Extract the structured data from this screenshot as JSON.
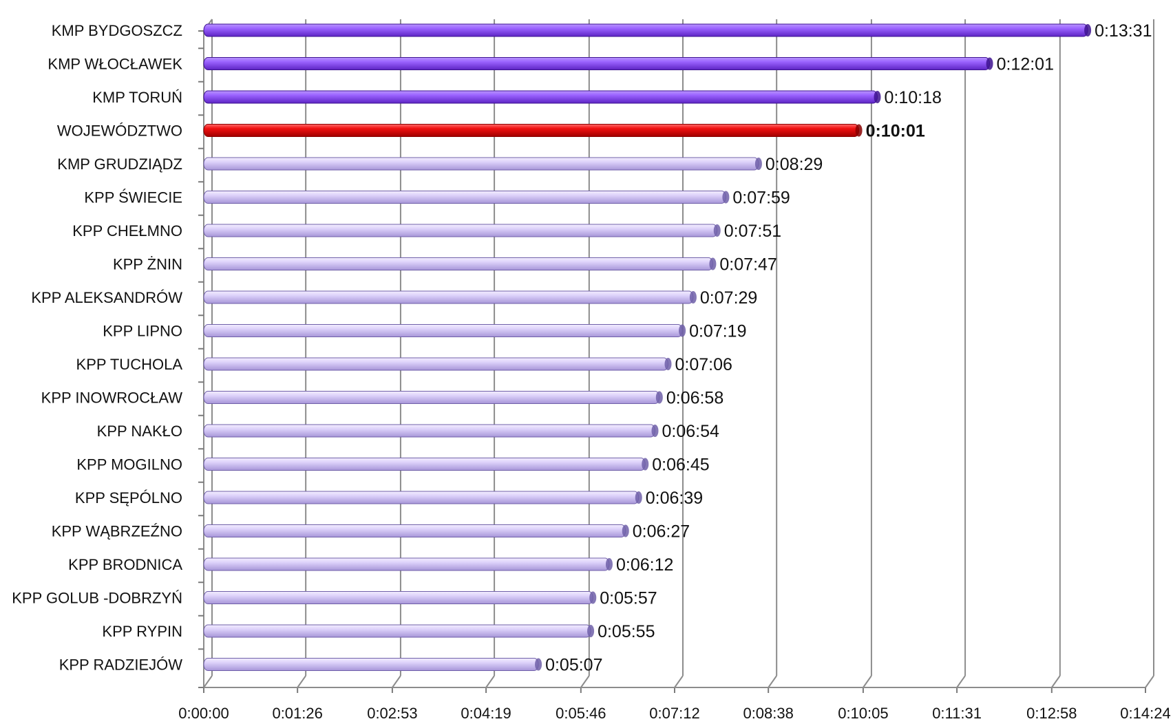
{
  "chart_data": {
    "type": "bar",
    "orientation": "horizontal",
    "categories": [
      "KMP  BYDGOSZCZ",
      "KMP  WŁOCŁAWEK",
      "KMP  TORUŃ",
      "WOJEWÓDZTWO",
      "KMP  GRUDZIĄDZ",
      "KPP  ŚWIECIE",
      "KPP  CHEŁMNO",
      "KPP  ŻNIN",
      "KPP  ALEKSANDRÓW",
      "KPP  LIPNO",
      "KPP  TUCHOLA",
      "KPP  INOWROCŁAW",
      "KPP  NAKŁO",
      "KPP  MOGILNO",
      "KPP  SĘPÓLNO",
      "KPP  WĄBRZEŹNO",
      "KPP BRODNICA",
      "KPP  GOLUB -DOBRZYŃ",
      "KPP  RYPIN",
      "KPP  RADZIEJÓW"
    ],
    "values": [
      "0:13:31",
      "0:12:01",
      "0:10:18",
      "0:10:01",
      "0:08:29",
      "0:07:59",
      "0:07:51",
      "0:07:47",
      "0:07:29",
      "0:07:19",
      "0:07:06",
      "0:06:58",
      "0:06:54",
      "0:06:45",
      "0:06:39",
      "0:06:27",
      "0:06:12",
      "0:05:57",
      "0:05:55",
      "0:05:07"
    ],
    "bar_colors": [
      "#8a4ff0",
      "#8a4ff0",
      "#8a4ff0",
      "#e00000",
      "#d8cdf5",
      "#d8cdf5",
      "#d8cdf5",
      "#d8cdf5",
      "#d8cdf5",
      "#d8cdf5",
      "#d8cdf5",
      "#d8cdf5",
      "#d8cdf5",
      "#d8cdf5",
      "#d8cdf5",
      "#d8cdf5",
      "#d8cdf5",
      "#d8cdf5",
      "#d8cdf5",
      "#d8cdf5"
    ],
    "bold_labels": [
      "0:10:01"
    ],
    "x_ticks": [
      "0:00:00",
      "0:01:26",
      "0:02:53",
      "0:04:19",
      "0:05:46",
      "0:07:12",
      "0:08:38",
      "0:10:05",
      "0:11:31",
      "0:12:58",
      "0:14:24"
    ],
    "xlim": [
      "0:00:00",
      "0:14:24"
    ],
    "grid": true,
    "style": "3d-cylinder",
    "title": "",
    "xlabel": "",
    "ylabel": ""
  }
}
